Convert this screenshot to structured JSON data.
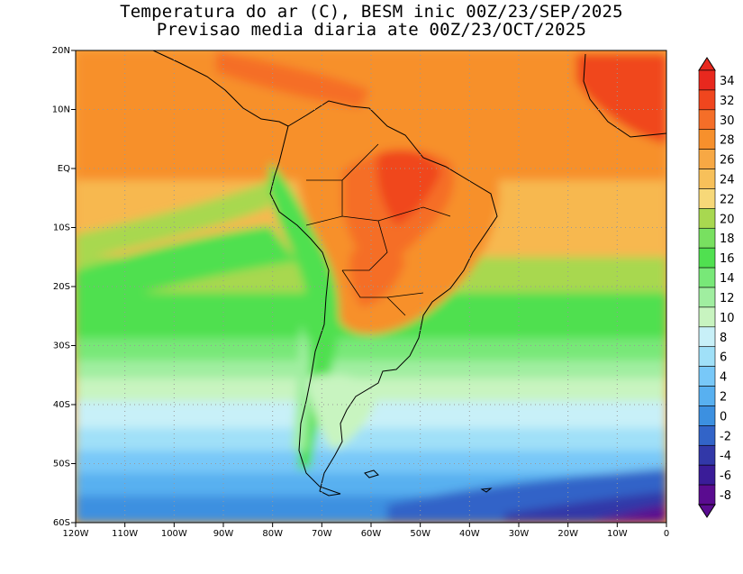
{
  "title": {
    "line1": "Temperatura do ar (C), BESM inic 00Z/23/SEP/2025",
    "line2": "Previsao media diaria ate 00Z/23/OCT/2025"
  },
  "map": {
    "lon_range": [
      -120,
      0
    ],
    "lat_range": [
      -60,
      20
    ],
    "lat_ticks": [
      "20N",
      "10N",
      "EQ",
      "10S",
      "20S",
      "30S",
      "40S",
      "50S",
      "60S"
    ],
    "lon_ticks": [
      "120W",
      "110W",
      "100W",
      "90W",
      "80W",
      "70W",
      "60W",
      "50W",
      "40W",
      "30W",
      "20W",
      "10W",
      "0"
    ],
    "grid": "dotted",
    "field": "temperature"
  },
  "colorbar": {
    "labels": [
      "34",
      "32",
      "30",
      "28",
      "26",
      "24",
      "22",
      "20",
      "18",
      "16",
      "14",
      "12",
      "10",
      "8",
      "6",
      "4",
      "2",
      "0",
      "-2",
      "-4",
      "-6",
      "-8"
    ],
    "colors": [
      "#e8281e",
      "#f0461e",
      "#f56e28",
      "#f7902c",
      "#f7a844",
      "#f7c05a",
      "#f7d878",
      "#a8d850",
      "#78e060",
      "#50e050",
      "#78e878",
      "#a0eea0",
      "#c8f4c0",
      "#c8f0f8",
      "#a0e0f8",
      "#78c8f8",
      "#58b0f0",
      "#3c90e0",
      "#3264c8",
      "#3238a8",
      "#3a1c98",
      "#5a0c90"
    ]
  }
}
